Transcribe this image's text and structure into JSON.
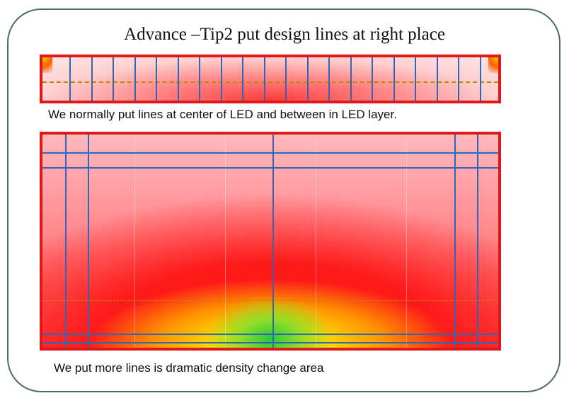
{
  "slide": {
    "title": "Advance –Tip2 put design lines at right place",
    "caption_top": "We normally put lines at center of LED and between in LED layer.",
    "caption_bottom": "We put more lines is dramatic density change area"
  },
  "colors": {
    "border": "#e01818",
    "design_line": "#2f67b8",
    "frame": "#4a6c6c"
  }
}
